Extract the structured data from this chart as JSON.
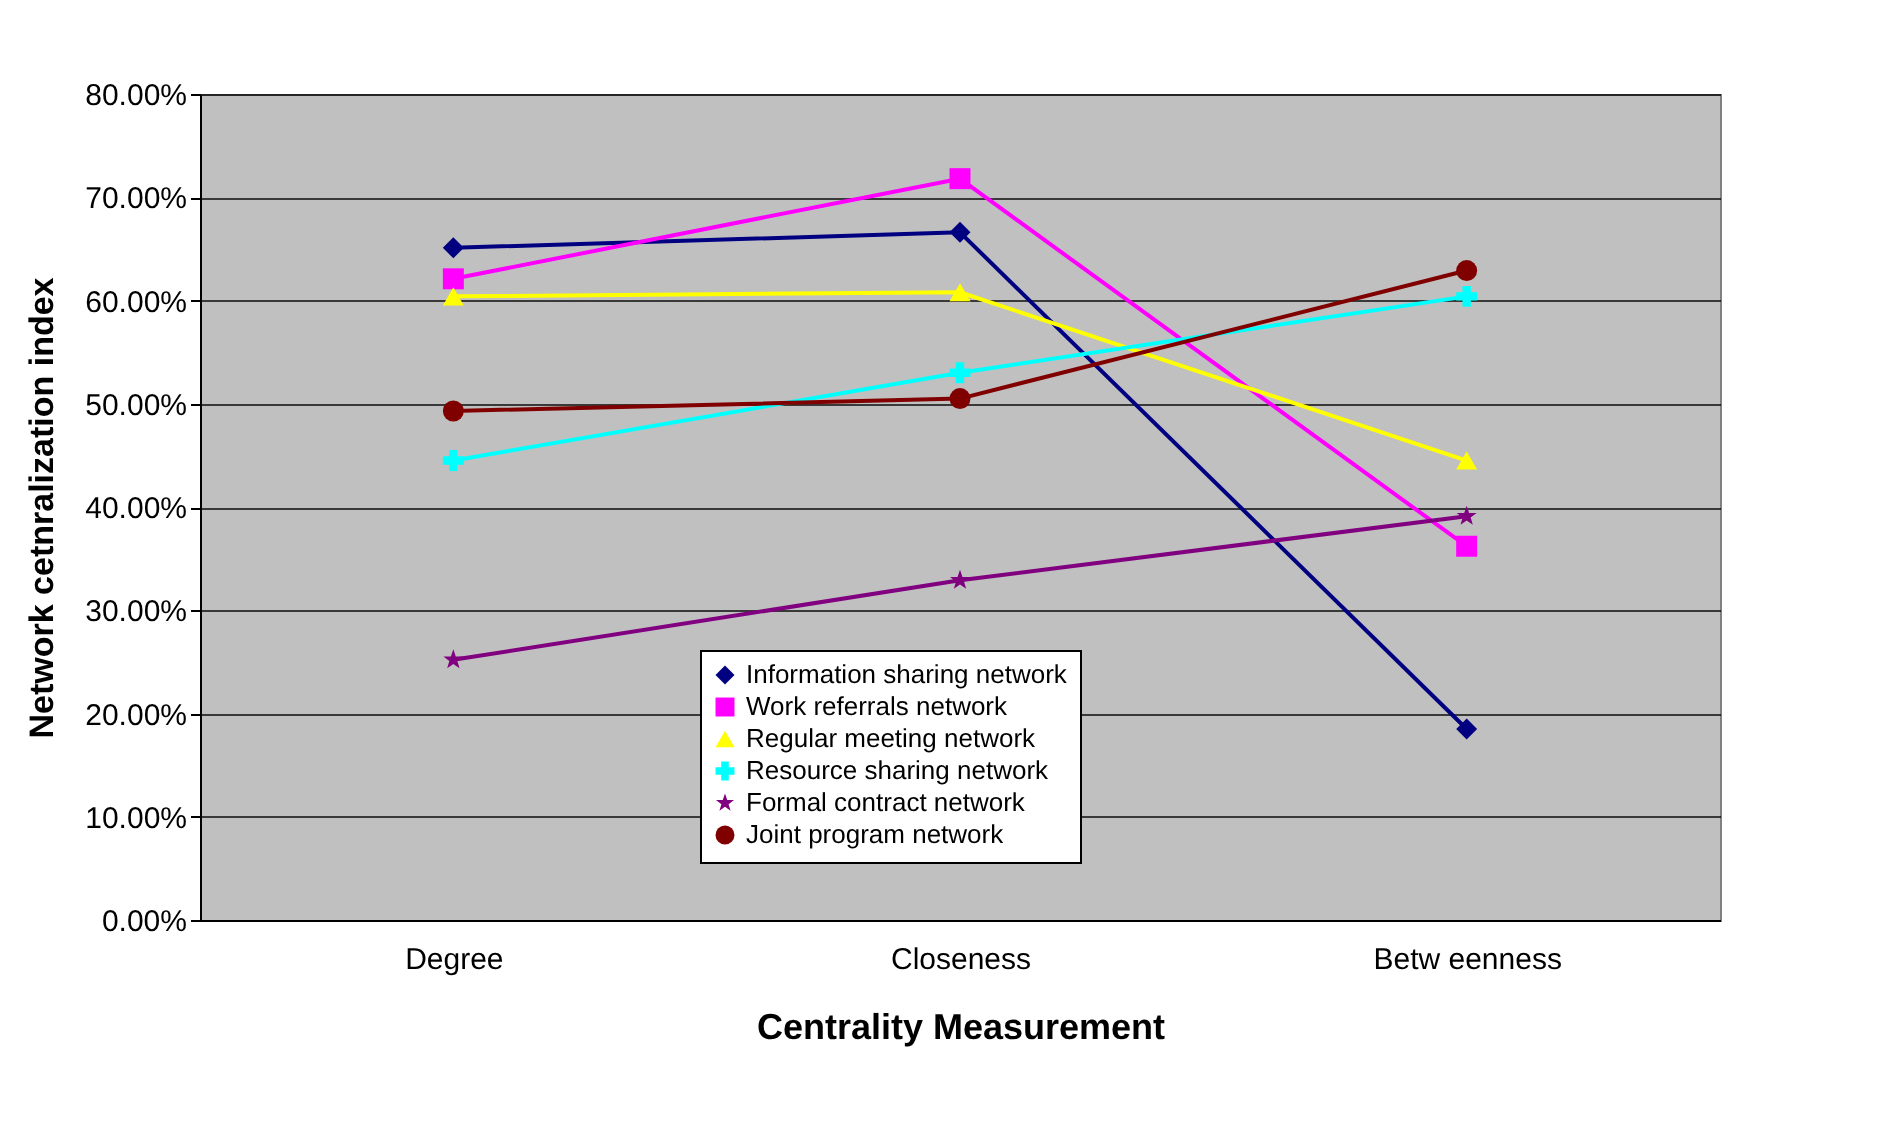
{
  "chart_data": {
    "type": "line",
    "xlabel": "Centrality Measurement",
    "ylabel": "Network cetnralization index",
    "categories": [
      "Degree",
      "Closeness",
      "Betw eenness"
    ],
    "series": [
      {
        "name": "Information sharing network",
        "color": "#000080",
        "marker": "diamond",
        "values": [
          65.1,
          66.6,
          18.5
        ]
      },
      {
        "name": "Work referrals network",
        "color": "#ff00ff",
        "marker": "square",
        "values": [
          62.1,
          71.8,
          36.2
        ]
      },
      {
        "name": "Regular meeting network",
        "color": "#ffff00",
        "marker": "triangle",
        "values": [
          60.4,
          60.8,
          44.5
        ]
      },
      {
        "name": "Resource sharing network",
        "color": "#00ffff",
        "marker": "cross",
        "values": [
          44.5,
          53.0,
          60.4
        ]
      },
      {
        "name": "Formal contract network",
        "color": "#800080",
        "marker": "star",
        "values": [
          25.2,
          32.9,
          39.1
        ]
      },
      {
        "name": "Joint program network",
        "color": "#800000",
        "marker": "circle",
        "values": [
          49.3,
          50.5,
          62.9
        ]
      }
    ],
    "ylim": [
      0,
      80
    ],
    "yticks": [
      {
        "value": 0,
        "label": "0.00%"
      },
      {
        "value": 10,
        "label": "10.00%"
      },
      {
        "value": 20,
        "label": "20.00%"
      },
      {
        "value": 30,
        "label": "30.00%"
      },
      {
        "value": 40,
        "label": "40.00%"
      },
      {
        "value": 50,
        "label": "50.00%"
      },
      {
        "value": 60,
        "label": "60.00%"
      },
      {
        "value": 70,
        "label": "70.00%"
      },
      {
        "value": 80,
        "label": "80.00%"
      }
    ],
    "grid": "y",
    "legend": "bottom",
    "line_style": "solid"
  }
}
